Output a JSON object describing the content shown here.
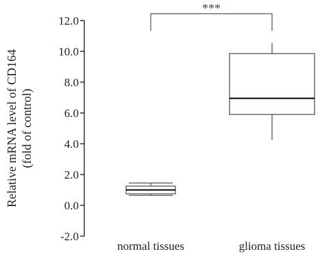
{
  "chart_data": {
    "type": "box",
    "ylabel_lines": [
      "Relative mRNA level of CD164",
      "(fold of control)"
    ],
    "ylim": [
      -2.0,
      12.0
    ],
    "yticks": [
      "-2.0",
      "0.0",
      "2.0",
      "4.0",
      "6.0",
      "8.0",
      "10.0",
      "12.0"
    ],
    "categories": [
      "normal tissues",
      "glioma tissues"
    ],
    "boxes": [
      {
        "category": "normal tissues",
        "min": 0.65,
        "q1": 0.75,
        "median": 1.0,
        "q3": 1.25,
        "max": 1.45
      },
      {
        "category": "glioma tissues",
        "min": 4.25,
        "q1": 5.9,
        "median": 6.95,
        "q3": 9.85,
        "max": 10.55
      }
    ],
    "significance": {
      "label": "***",
      "between": [
        "normal tissues",
        "glioma tissues"
      ],
      "y": 12.5
    },
    "colors": {
      "line": "#555555",
      "median": "#000000",
      "axis": "#333333"
    }
  }
}
